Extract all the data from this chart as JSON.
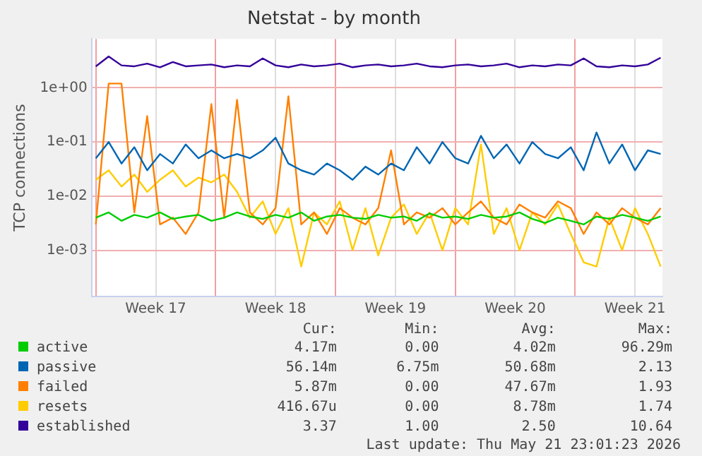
{
  "chart_data": {
    "type": "line",
    "title": "Netstat - by month",
    "ylabel": "TCP connections",
    "log": "y",
    "grid": true,
    "legend": "bottom",
    "marker": "none",
    "line_style": "solid",
    "x": [
      "2026-04-20T00:00",
      "2026-04-20T18:00",
      "2026-04-21T12:00",
      "2026-04-22T06:00",
      "2026-04-23T00:00",
      "2026-04-23T18:00",
      "2026-04-24T12:00",
      "2026-04-25T06:00",
      "2026-04-26T00:00",
      "2026-04-26T18:00",
      "2026-04-27T12:00",
      "2026-04-28T06:00",
      "2026-04-29T00:00",
      "2026-04-29T18:00",
      "2026-04-30T12:00",
      "2026-05-01T06:00",
      "2026-05-02T00:00",
      "2026-05-02T18:00",
      "2026-05-03T12:00",
      "2026-05-04T06:00",
      "2026-05-05T00:00",
      "2026-05-05T18:00",
      "2026-05-06T12:00",
      "2026-05-07T06:00",
      "2026-05-08T00:00",
      "2026-05-08T18:00",
      "2026-05-09T12:00",
      "2026-05-10T06:00",
      "2026-05-11T00:00",
      "2026-05-11T18:00",
      "2026-05-12T12:00",
      "2026-05-13T06:00",
      "2026-05-14T00:00",
      "2026-05-14T18:00",
      "2026-05-15T12:00",
      "2026-05-16T06:00",
      "2026-05-17T00:00",
      "2026-05-17T18:00",
      "2026-05-18T12:00",
      "2026-05-19T06:00",
      "2026-05-20T00:00",
      "2026-05-20T18:00",
      "2026-05-21T12:00",
      "2026-05-22T06:00",
      "2026-05-23T00:00"
    ],
    "xlim": [
      "2026-04-19T18:00",
      "2026-05-23T02:30"
    ],
    "xticks": [
      {
        "value": "2026-04-20T00:00",
        "label": null
      },
      {
        "value": "2026-04-23T12:00",
        "label": "Week 17"
      },
      {
        "value": "2026-04-27T00:00",
        "label": null
      },
      {
        "value": "2026-04-30T12:00",
        "label": "Week 18"
      },
      {
        "value": "2026-05-04T00:00",
        "label": null
      },
      {
        "value": "2026-05-07T12:00",
        "label": "Week 19"
      },
      {
        "value": "2026-05-11T00:00",
        "label": null
      },
      {
        "value": "2026-05-14T12:00",
        "label": "Week 20"
      },
      {
        "value": "2026-05-18T00:00",
        "label": null
      },
      {
        "value": "2026-05-21T12:00",
        "label": "Week 21"
      }
    ],
    "ylim": [
      0.00014,
      8
    ],
    "yticks": [
      {
        "value": 0.001,
        "label": "1e-03"
      },
      {
        "value": 0.01,
        "label": "1e-02"
      },
      {
        "value": 0.1,
        "label": "1e-01"
      },
      {
        "value": 1,
        "label": "1e+00"
      }
    ],
    "series": [
      {
        "name": "active",
        "color": "#00cc00",
        "values": [
          0.004,
          0.005,
          0.0035,
          0.0045,
          0.004,
          0.005,
          0.0038,
          0.0042,
          0.0045,
          0.0035,
          0.004,
          0.005,
          0.0042,
          0.0038,
          0.0045,
          0.004,
          0.005,
          0.0035,
          0.0042,
          0.0045,
          0.004,
          0.0038,
          0.0045,
          0.004,
          0.0042,
          0.0035,
          0.0048,
          0.004,
          0.0042,
          0.0038,
          0.0045,
          0.004,
          0.0042,
          0.005,
          0.0038,
          0.0032,
          0.004,
          0.0035,
          0.003,
          0.0042,
          0.0038,
          0.0045,
          0.004,
          0.0035,
          0.0042
        ]
      },
      {
        "name": "passive",
        "color": "#0066b3",
        "values": [
          0.05,
          0.1,
          0.04,
          0.08,
          0.03,
          0.06,
          0.04,
          0.09,
          0.05,
          0.07,
          0.05,
          0.06,
          0.05,
          0.07,
          0.12,
          0.04,
          0.03,
          0.025,
          0.04,
          0.03,
          0.02,
          0.035,
          0.025,
          0.04,
          0.03,
          0.08,
          0.04,
          0.1,
          0.05,
          0.04,
          0.13,
          0.05,
          0.09,
          0.04,
          0.1,
          0.06,
          0.05,
          0.08,
          0.03,
          0.15,
          0.04,
          0.09,
          0.03,
          0.07,
          0.06
        ]
      },
      {
        "name": "failed",
        "color": "#ff8000",
        "values": [
          0.003,
          1.2,
          1.2,
          0.005,
          0.3,
          0.003,
          0.004,
          0.002,
          0.005,
          0.5,
          0.004,
          0.6,
          0.005,
          0.003,
          0.006,
          0.7,
          0.003,
          0.005,
          0.002,
          0.006,
          0.004,
          0.003,
          0.006,
          0.07,
          0.003,
          0.005,
          0.004,
          0.006,
          0.003,
          0.005,
          0.008,
          0.004,
          0.003,
          0.007,
          0.005,
          0.004,
          0.008,
          0.006,
          0.002,
          0.005,
          0.003,
          0.006,
          0.004,
          0.003,
          0.006
        ]
      },
      {
        "name": "resets",
        "color": "#ffcc00",
        "values": [
          0.02,
          0.03,
          0.015,
          0.025,
          0.012,
          0.02,
          0.03,
          0.015,
          0.022,
          0.018,
          0.025,
          0.012,
          0.004,
          0.008,
          0.002,
          0.006,
          0.0005,
          0.005,
          0.003,
          0.008,
          0.001,
          0.006,
          0.0008,
          0.004,
          0.007,
          0.002,
          0.005,
          0.001,
          0.006,
          0.003,
          0.09,
          0.002,
          0.006,
          0.001,
          0.005,
          0.003,
          0.007,
          0.002,
          0.0006,
          0.0005,
          0.004,
          0.001,
          0.006,
          0.002,
          0.0005
        ]
      },
      {
        "name": "established",
        "color": "#330099",
        "values": [
          2.5,
          3.8,
          2.6,
          2.5,
          2.8,
          2.4,
          3.0,
          2.5,
          2.6,
          2.7,
          2.4,
          2.6,
          2.5,
          3.5,
          2.6,
          2.4,
          2.7,
          2.5,
          2.6,
          2.8,
          2.4,
          2.6,
          2.7,
          2.5,
          2.6,
          2.8,
          2.5,
          2.4,
          2.6,
          2.7,
          2.5,
          2.6,
          2.8,
          2.4,
          2.6,
          2.5,
          2.7,
          2.6,
          3.5,
          2.5,
          2.4,
          2.6,
          2.5,
          2.7,
          3.6
        ]
      }
    ],
    "annotations": [
      "Cur:",
      "Min:",
      "Avg:",
      "Max:",
      "4.17m",
      "0.00",
      "4.02m",
      "96.29m",
      "56.14m",
      "6.75m",
      "50.68m",
      "2.13",
      "5.87m",
      "0.00",
      "47.67m",
      "1.93",
      "416.67u",
      "0.00",
      "8.78m",
      "1.74",
      "3.37",
      "1.00",
      "2.50",
      "10.64",
      "Last update: Thu May 21 23:01:23 2026"
    ]
  }
}
